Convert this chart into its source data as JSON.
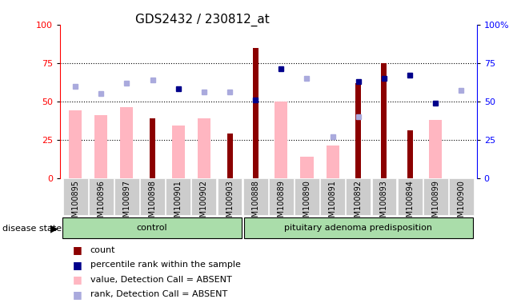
{
  "title": "GDS2432 / 230812_at",
  "samples": [
    "GSM100895",
    "GSM100896",
    "GSM100897",
    "GSM100898",
    "GSM100901",
    "GSM100902",
    "GSM100903",
    "GSM100888",
    "GSM100889",
    "GSM100890",
    "GSM100891",
    "GSM100892",
    "GSM100893",
    "GSM100894",
    "GSM100899",
    "GSM100900"
  ],
  "groups": [
    "control",
    "control",
    "control",
    "control",
    "control",
    "control",
    "control",
    "pituitary adenoma predisposition",
    "pituitary adenoma predisposition",
    "pituitary adenoma predisposition",
    "pituitary adenoma predisposition",
    "pituitary adenoma predisposition",
    "pituitary adenoma predisposition",
    "pituitary adenoma predisposition",
    "pituitary adenoma predisposition",
    "pituitary adenoma predisposition"
  ],
  "count_values": [
    0,
    0,
    0,
    39,
    0,
    0,
    29,
    85,
    0,
    0,
    0,
    62,
    75,
    31,
    0,
    0
  ],
  "value_absent": [
    44,
    41,
    46,
    0,
    34,
    39,
    0,
    0,
    50,
    14,
    21,
    0,
    0,
    0,
    38,
    0
  ],
  "percentile_rank": [
    0,
    0,
    0,
    0,
    58,
    0,
    0,
    51,
    71,
    0,
    0,
    63,
    65,
    67,
    49,
    0
  ],
  "rank_absent": [
    60,
    55,
    62,
    64,
    0,
    56,
    56,
    0,
    0,
    65,
    27,
    40,
    0,
    0,
    0,
    57
  ],
  "n_control": 7,
  "n_pituitary": 9,
  "ylim_left": [
    0,
    100
  ],
  "ylim_right": [
    0,
    100
  ],
  "color_count": "#8B0000",
  "color_value_absent": "#FFB6C1",
  "color_percentile_rank": "#00008B",
  "color_rank_absent": "#AAAADD",
  "color_group_control": "#AADDAA",
  "color_group_pituitary": "#AADDAA",
  "bg_xticklabels": "#CCCCCC",
  "legend_labels": [
    "count",
    "percentile rank within the sample",
    "value, Detection Call = ABSENT",
    "rank, Detection Call = ABSENT"
  ],
  "legend_colors": [
    "#8B0000",
    "#00008B",
    "#FFB6C1",
    "#AAAADD"
  ]
}
